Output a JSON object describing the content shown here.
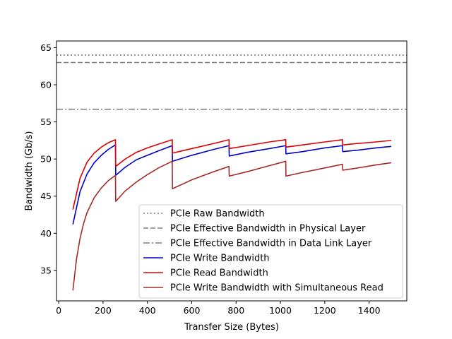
{
  "chart_data": {
    "type": "line",
    "xlabel": "Transfer Size (Bytes)",
    "ylabel": "Bandwidth (Gb/s)",
    "xlim": [
      -10,
      1570
    ],
    "ylim": [
      30.9,
      65.9
    ],
    "xticks": [
      0,
      200,
      400,
      600,
      800,
      1000,
      1200,
      1400
    ],
    "yticks": [
      35,
      40,
      45,
      50,
      55,
      60,
      65
    ],
    "grid": false,
    "legend_position": "lower-right",
    "reference_lines": [
      {
        "name": "PCIe Raw Bandwidth",
        "y": 64.0,
        "color": "#808080",
        "style": "dotted"
      },
      {
        "name": "PCIe Effective Bandwidth in Physical Layer",
        "y": 63.0,
        "color": "#808080",
        "style": "dashed"
      },
      {
        "name": "PCIe Effective Bandwidth in Data Link Layer",
        "y": 56.7,
        "color": "#808080",
        "style": "dashdot"
      }
    ],
    "series": [
      {
        "name": "PCIe Write Bandwidth",
        "color": "#0000cc",
        "points": [
          [
            64,
            41.2
          ],
          [
            96,
            45.6
          ],
          [
            128,
            48.0
          ],
          [
            160,
            49.5
          ],
          [
            192,
            50.5
          ],
          [
            224,
            51.3
          ],
          [
            256,
            51.9
          ],
          [
            257,
            47.8
          ],
          [
            300,
            48.9
          ],
          [
            350,
            49.9
          ],
          [
            400,
            50.5
          ],
          [
            450,
            51.1
          ],
          [
            512,
            51.8
          ],
          [
            513,
            49.7
          ],
          [
            600,
            50.5
          ],
          [
            700,
            51.3
          ],
          [
            768,
            51.8
          ],
          [
            769,
            50.4
          ],
          [
            850,
            50.9
          ],
          [
            950,
            51.4
          ],
          [
            1024,
            51.8
          ],
          [
            1025,
            50.7
          ],
          [
            1100,
            51.0
          ],
          [
            1200,
            51.5
          ],
          [
            1280,
            51.8
          ],
          [
            1281,
            51.0
          ],
          [
            1350,
            51.2
          ],
          [
            1430,
            51.5
          ],
          [
            1500,
            51.7
          ]
        ]
      },
      {
        "name": "PCIe Read Bandwidth",
        "color": "#dd0000",
        "points": [
          [
            64,
            43.2
          ],
          [
            96,
            47.4
          ],
          [
            128,
            49.6
          ],
          [
            160,
            50.8
          ],
          [
            192,
            51.6
          ],
          [
            224,
            52.2
          ],
          [
            256,
            52.6
          ],
          [
            257,
            49.0
          ],
          [
            300,
            50.0
          ],
          [
            350,
            50.9
          ],
          [
            400,
            51.5
          ],
          [
            450,
            52.0
          ],
          [
            512,
            52.6
          ],
          [
            513,
            50.8
          ],
          [
            600,
            51.4
          ],
          [
            700,
            52.1
          ],
          [
            768,
            52.6
          ],
          [
            769,
            51.4
          ],
          [
            850,
            51.8
          ],
          [
            950,
            52.3
          ],
          [
            1024,
            52.6
          ],
          [
            1025,
            51.6
          ],
          [
            1100,
            51.9
          ],
          [
            1200,
            52.3
          ],
          [
            1280,
            52.6
          ],
          [
            1281,
            51.9
          ],
          [
            1350,
            52.1
          ],
          [
            1430,
            52.3
          ],
          [
            1500,
            52.5
          ]
        ]
      },
      {
        "name": "PCIe Write Bandwidth with Simultaneous Read",
        "color": "#a52a2a",
        "points": [
          [
            64,
            32.3
          ],
          [
            80,
            36.5
          ],
          [
            96,
            39.3
          ],
          [
            112,
            41.3
          ],
          [
            128,
            42.8
          ],
          [
            160,
            44.8
          ],
          [
            192,
            46.1
          ],
          [
            224,
            47.1
          ],
          [
            256,
            47.8
          ],
          [
            257,
            44.3
          ],
          [
            300,
            45.7
          ],
          [
            350,
            46.9
          ],
          [
            400,
            47.9
          ],
          [
            450,
            48.8
          ],
          [
            512,
            49.7
          ],
          [
            513,
            46.0
          ],
          [
            600,
            47.2
          ],
          [
            700,
            48.3
          ],
          [
            768,
            49.0
          ],
          [
            769,
            47.7
          ],
          [
            850,
            48.3
          ],
          [
            950,
            49.1
          ],
          [
            1024,
            49.7
          ],
          [
            1025,
            47.7
          ],
          [
            1100,
            48.2
          ],
          [
            1200,
            48.8
          ],
          [
            1280,
            49.3
          ],
          [
            1281,
            48.5
          ],
          [
            1350,
            48.8
          ],
          [
            1430,
            49.2
          ],
          [
            1500,
            49.5
          ]
        ]
      }
    ]
  }
}
